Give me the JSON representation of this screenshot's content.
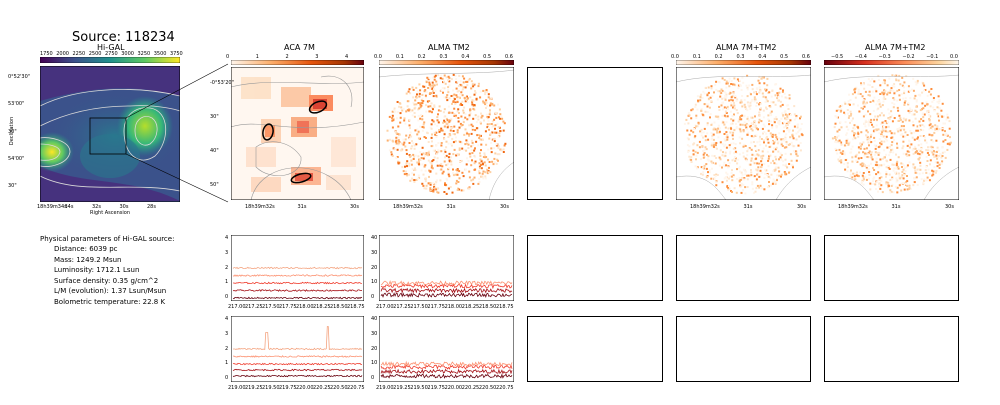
{
  "page": {
    "source_title": "Source: 118234"
  },
  "panels": {
    "higal": {
      "title": "Hi-GAL",
      "colorbar_ticks": [
        "1750",
        "2000",
        "2250",
        "2500",
        "2750",
        "3000",
        "3250",
        "3500",
        "3750"
      ],
      "dec_ticks": [
        "0°52'30\"",
        "53'00\"",
        "30\"",
        "54'00\"",
        "30\""
      ],
      "ra_ticks": [
        "18h39m34s",
        "34s",
        "32s",
        "30s",
        "28s"
      ],
      "xlabel": "Right Ascension",
      "ylabel": "Declination",
      "colormap": [
        "#440154",
        "#3b528b",
        "#21918c",
        "#5ec962",
        "#fde725"
      ]
    },
    "aca7m": {
      "title": "ACA 7M",
      "colorbar_ticks": [
        "0",
        "1",
        "2",
        "3",
        "4"
      ],
      "dec_ticks": [
        "-0°53'20\"",
        "30\"",
        "40\"",
        "50\""
      ],
      "ra_ticks": [
        "18h39m32s",
        "31s",
        "30s"
      ],
      "colormap": [
        "#fff5eb",
        "#fdae6b",
        "#e6550d",
        "#a63603",
        "#7f2704"
      ]
    },
    "almatm2": {
      "title": "ALMA TM2",
      "colorbar_ticks": [
        "0.0",
        "0.1",
        "0.2",
        "0.3",
        "0.4",
        "0.5",
        "0.6"
      ],
      "ra_ticks": [
        "18h39m32s",
        "31s",
        "30s"
      ]
    },
    "alma7mtm2": {
      "title": "ALMA 7M+TM2",
      "colorbar_ticks": [
        "0.0",
        "0.1",
        "0.2",
        "0.3",
        "0.4",
        "0.5",
        "0.6"
      ],
      "ra_ticks": [
        "18h39m32s",
        "31s",
        "30s"
      ]
    },
    "alma7mtm2_diff": {
      "title": "ALMA 7M+TM2",
      "colorbar_ticks": [
        "−0.5",
        "−0.4",
        "−0.3",
        "−0.2",
        "−0.1",
        "0.0"
      ],
      "ra_ticks": [
        "18h39m32s",
        "31s",
        "30s"
      ]
    }
  },
  "info": {
    "heading": "Physical parameters of Hi-GAL source:",
    "lines": [
      "Distance: 6039 pc",
      "Mass: 1249.2 Msun",
      "Luminosity: 1712.1 Lsun",
      "Surface density: 0.35 g/cm^2",
      "L/M (evolution): 1.37 Lsun/Msun",
      "Bolometric temperature: 22.8 K"
    ]
  },
  "spectra": {
    "row1_xticks": [
      "217.00",
      "217.25",
      "217.50",
      "217.75",
      "218.00",
      "218.25",
      "218.50",
      "218.75"
    ],
    "row2_xticks": [
      "219.00",
      "219.25",
      "219.50",
      "219.75",
      "220.00",
      "220.25",
      "220.50",
      "220.75"
    ],
    "aca_yticks": [
      "0",
      "1",
      "2",
      "3",
      "4"
    ],
    "alma_yticks": [
      "0",
      "10",
      "20",
      "30",
      "40"
    ]
  },
  "chart_data": {
    "type": "line",
    "x_range_row1": [
      217.0,
      218.8
    ],
    "x_range_row2": [
      219.0,
      220.8
    ],
    "aca_ylim": [
      0,
      4
    ],
    "alma_ylim": [
      0,
      40
    ],
    "aca_row1_offsets": [
      0,
      0.5,
      1.0,
      1.5,
      2.0
    ],
    "aca_row2_offsets": [
      0.2,
      0.6,
      1.0,
      1.5,
      2.0
    ],
    "alma_row1_offsets": [
      2,
      5,
      8,
      10
    ],
    "alma_row2_offsets": [
      2,
      5,
      8,
      10
    ],
    "aca_row2_peaks": [
      {
        "x": 219.47,
        "y": 3.1
      },
      {
        "x": 220.32,
        "y": 3.5
      }
    ],
    "series_colors": [
      "#67000d",
      "#a50f15",
      "#ef3b2c",
      "#fc9272",
      "#f4a582"
    ]
  }
}
